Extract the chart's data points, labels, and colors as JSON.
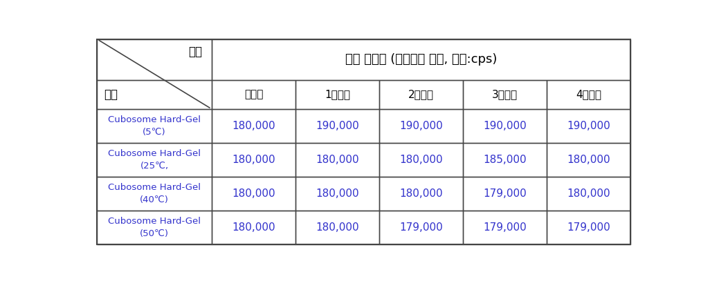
{
  "header_top_left": "기간",
  "header_top_right": "경시 안정성 (점도측정 결과, 단위:cps)",
  "header_bottom_left": "시료",
  "col_headers": [
    "투입전",
    "1주경과",
    "2주경과",
    "3주경과",
    "4주경과"
  ],
  "row_labels": [
    "Cubosome Hard-Gel\n(5℃)",
    "Cubosome Hard-Gel\n(25℃,",
    "Cubosome Hard-Gel\n(40℃)",
    "Cubosome Hard-Gel\n(50℃)"
  ],
  "data": [
    [
      "180,000",
      "190,000",
      "190,000",
      "190,000",
      "190,000"
    ],
    [
      "180,000",
      "180,000",
      "180,000",
      "185,000",
      "180,000"
    ],
    [
      "180,000",
      "180,000",
      "180,000",
      "179,000",
      "180,000"
    ],
    [
      "180,000",
      "180,000",
      "179,000",
      "179,000",
      "179,000"
    ]
  ],
  "data_color": "#3333cc",
  "row_label_color": "#3333cc",
  "header_text_color": "#000000",
  "col_header_color": "#000000",
  "border_color": "#444444",
  "bg_color": "#ffffff"
}
